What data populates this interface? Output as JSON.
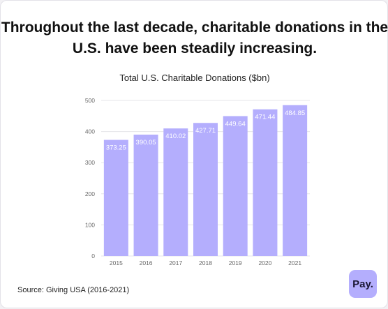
{
  "headline": "Throughout the last decade, charitable donations in the U.S. have been steadily increasing.",
  "source": "Source: Giving USA (2016-2021)",
  "logo_text": "Pay.",
  "colors": {
    "bar": "#b4aefd",
    "gridline": "#e6e6ea",
    "bar_label": "#ffffff",
    "logo_bg": "#b4aefd"
  },
  "chart_data": {
    "type": "bar",
    "title": "Total U.S. Charitable Donations ($bn)",
    "xlabel": "",
    "ylabel": "",
    "categories": [
      "2015",
      "2016",
      "2017",
      "2018",
      "2019",
      "2020",
      "2021"
    ],
    "values": [
      373.25,
      390.05,
      410.02,
      427.71,
      449.64,
      471.44,
      484.85
    ],
    "ylim": [
      0,
      500
    ],
    "yticks": [
      0,
      100,
      200,
      300,
      400,
      500
    ],
    "grid": true,
    "data_labels": "inside-top"
  }
}
